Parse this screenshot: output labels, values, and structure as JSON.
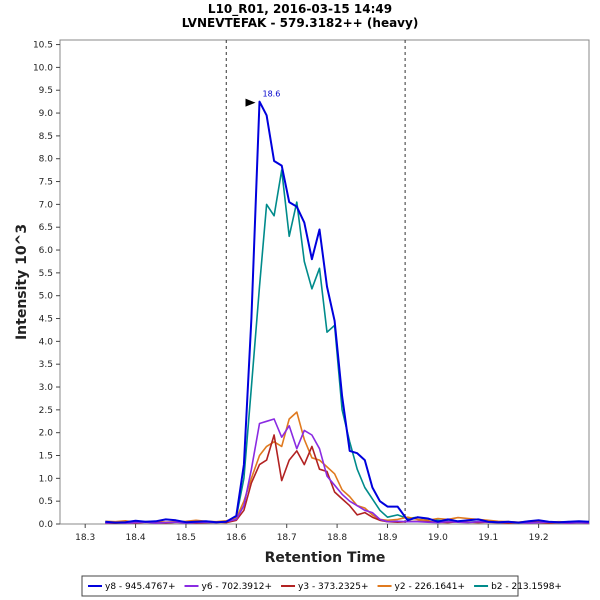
{
  "chart_data": {
    "type": "line",
    "title": "L10_R01, 2016-03-15 14:49",
    "subtitle": "LVNEVTEFAK - 579.3182++ (heavy)",
    "xlabel": "Retention Time",
    "ylabel": "Intensity 10^3",
    "xlim": [
      18.25,
      19.3
    ],
    "ylim": [
      0,
      10.6
    ],
    "x_ticks": [
      "18.3",
      "18.4",
      "18.5",
      "18.6",
      "18.7",
      "18.8",
      "18.9",
      "19.0",
      "19.1",
      "19.2"
    ],
    "y_ticks": [
      "0.0",
      "0.5",
      "1.0",
      "1.5",
      "2.0",
      "2.5",
      "3.0",
      "3.5",
      "4.0",
      "4.5",
      "5.0",
      "5.5",
      "6.0",
      "6.5",
      "7.0",
      "7.5",
      "8.0",
      "8.5",
      "9.0",
      "9.5",
      "10.0",
      "10.5"
    ],
    "x_tick_values": [
      18.3,
      18.4,
      18.5,
      18.6,
      18.7,
      18.8,
      18.9,
      19.0,
      19.1,
      19.2
    ],
    "y_tick_values": [
      0,
      0.5,
      1,
      1.5,
      2,
      2.5,
      3,
      3.5,
      4,
      4.5,
      5,
      5.5,
      6,
      6.5,
      7,
      7.5,
      8,
      8.5,
      9,
      9.5,
      10,
      10.5
    ],
    "integration_bounds": [
      18.58,
      18.935
    ],
    "peak_annotation": {
      "label": "18.6",
      "x": 18.646,
      "y": 9.25
    },
    "grid": false,
    "legend_position": "bottom",
    "x": [
      18.34,
      18.36,
      18.38,
      18.4,
      18.42,
      18.44,
      18.46,
      18.48,
      18.5,
      18.52,
      18.54,
      18.56,
      18.58,
      18.6,
      18.615,
      18.63,
      18.646,
      18.66,
      18.675,
      18.69,
      18.705,
      18.72,
      18.735,
      18.75,
      18.765,
      18.78,
      18.795,
      18.81,
      18.825,
      18.84,
      18.855,
      18.87,
      18.885,
      18.9,
      18.92,
      18.94,
      18.96,
      18.98,
      19.0,
      19.02,
      19.04,
      19.06,
      19.08,
      19.1,
      19.12,
      19.14,
      19.16,
      19.18,
      19.2,
      19.22,
      19.24,
      19.26,
      19.28,
      19.3
    ],
    "series": [
      {
        "name": "y8 - 945.4767+",
        "color": "#0000dd",
        "values": [
          0.05,
          0.03,
          0.04,
          0.07,
          0.05,
          0.06,
          0.1,
          0.08,
          0.04,
          0.05,
          0.06,
          0.04,
          0.05,
          0.18,
          1.3,
          4.5,
          9.25,
          8.95,
          7.95,
          7.85,
          7.05,
          6.95,
          6.6,
          5.8,
          6.45,
          5.2,
          4.45,
          2.8,
          1.6,
          1.55,
          1.4,
          0.8,
          0.5,
          0.38,
          0.38,
          0.08,
          0.15,
          0.12,
          0.05,
          0.1,
          0.06,
          0.08,
          0.1,
          0.05,
          0.04,
          0.05,
          0.03,
          0.06,
          0.08,
          0.05,
          0.04,
          0.05,
          0.06,
          0.05
        ]
      },
      {
        "name": "y6 - 702.3912+",
        "color": "#8a2be2",
        "values": [
          0.02,
          0.03,
          0.02,
          0.03,
          0.04,
          0.02,
          0.03,
          0.04,
          0.02,
          0.03,
          0.04,
          0.03,
          0.05,
          0.1,
          0.4,
          1.2,
          2.2,
          2.25,
          2.3,
          1.9,
          2.15,
          1.65,
          2.05,
          1.95,
          1.65,
          1.05,
          0.85,
          0.65,
          0.5,
          0.4,
          0.3,
          0.25,
          0.1,
          0.05,
          0.06,
          0.05,
          0.05,
          0.04,
          0.03,
          0.05,
          0.04,
          0.03,
          0.05,
          0.04,
          0.03,
          0.04,
          0.03,
          0.02,
          0.03,
          0.04,
          0.03,
          0.02,
          0.03,
          0.02
        ]
      },
      {
        "name": "y3 - 373.2325+",
        "color": "#b22222",
        "values": [
          0.02,
          0.02,
          0.03,
          0.02,
          0.04,
          0.03,
          0.02,
          0.04,
          0.03,
          0.02,
          0.03,
          0.04,
          0.03,
          0.08,
          0.3,
          0.9,
          1.3,
          1.4,
          1.95,
          0.95,
          1.4,
          1.6,
          1.3,
          1.7,
          1.2,
          1.15,
          0.7,
          0.55,
          0.4,
          0.2,
          0.25,
          0.15,
          0.08,
          0.05,
          0.04,
          0.05,
          0.06,
          0.05,
          0.04,
          0.03,
          0.05,
          0.04,
          0.03,
          0.04,
          0.03,
          0.02,
          0.03,
          0.04,
          0.03,
          0.02,
          0.03,
          0.02,
          0.03,
          0.02
        ]
      },
      {
        "name": "y2 - 226.1641+",
        "color": "#e07a1f",
        "values": [
          0.06,
          0.05,
          0.07,
          0.04,
          0.05,
          0.06,
          0.04,
          0.05,
          0.06,
          0.08,
          0.06,
          0.05,
          0.07,
          0.12,
          0.5,
          1.0,
          1.5,
          1.7,
          1.8,
          1.7,
          2.3,
          2.45,
          1.85,
          1.45,
          1.4,
          1.25,
          1.1,
          0.75,
          0.6,
          0.4,
          0.35,
          0.2,
          0.1,
          0.08,
          0.1,
          0.15,
          0.1,
          0.08,
          0.12,
          0.1,
          0.14,
          0.12,
          0.1,
          0.08,
          0.06,
          0.05,
          0.04,
          0.06,
          0.05,
          0.04,
          0.05,
          0.04,
          0.03,
          0.04
        ]
      },
      {
        "name": "b2 - 213.1598+",
        "color": "#008b8b",
        "values": [
          0.04,
          0.03,
          0.04,
          0.03,
          0.05,
          0.04,
          0.03,
          0.04,
          0.05,
          0.04,
          0.03,
          0.04,
          0.06,
          0.15,
          1.0,
          3.0,
          5.2,
          7.0,
          6.75,
          7.75,
          6.3,
          7.05,
          5.75,
          5.15,
          5.6,
          4.2,
          4.35,
          2.5,
          1.8,
          1.2,
          0.8,
          0.55,
          0.3,
          0.15,
          0.2,
          0.12,
          0.15,
          0.1,
          0.08,
          0.06,
          0.05,
          0.04,
          0.05,
          0.06,
          0.04,
          0.05,
          0.03,
          0.04,
          0.05,
          0.03,
          0.04,
          0.05,
          0.03,
          0.04
        ]
      }
    ]
  }
}
